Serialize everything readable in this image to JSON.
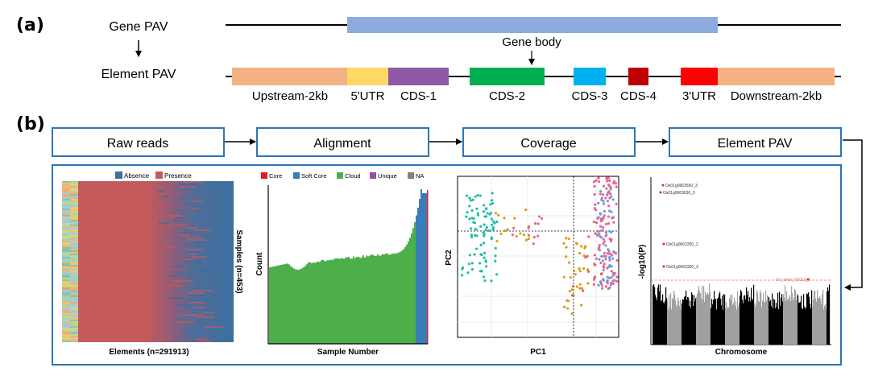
{
  "panel_a": {
    "label": "(a)",
    "gene_pav": "Gene PAV",
    "element_pav": "Element PAV",
    "gene_body": "Gene body",
    "segments": [
      {
        "label": "Upstream-2kb",
        "color": "#f4b183"
      },
      {
        "label": "5'UTR",
        "color": "#ffd966"
      },
      {
        "label": "CDS-1",
        "color": "#8e5aa8"
      },
      {
        "label": "CDS-2",
        "color": "#00b050"
      },
      {
        "label": "CDS-3",
        "color": "#00b0f0"
      },
      {
        "label": "CDS-4",
        "color": "#c00000"
      },
      {
        "label": "3'UTR",
        "color": "#ff0000"
      },
      {
        "label": "Downstream-2kb",
        "color": "#f4b183"
      }
    ],
    "gene_bar_color": "#8faadc"
  },
  "panel_b": {
    "label": "(b)",
    "steps": [
      "Raw reads",
      "Alignment",
      "Coverage",
      "Element PAV"
    ],
    "box_color": "#2e75b6",
    "heatmap": {
      "legend": [
        {
          "label": "Absence",
          "color": "#3b6fa0"
        },
        {
          "label": "Presence",
          "color": "#c45a5a"
        }
      ],
      "xlabel": "Elements (n=291913)",
      "ylabel": "Samples (n=453)"
    },
    "histogram": {
      "legend": [
        {
          "label": "Core",
          "color": "#e41a1c"
        },
        {
          "label": "Soft Core",
          "color": "#377eb8"
        },
        {
          "label": "Cloud",
          "color": "#4daf4a"
        },
        {
          "label": "Unique",
          "color": "#984ea3"
        },
        {
          "label": "NA",
          "color": "#808080"
        }
      ],
      "xlabel": "Sample Number",
      "ylabel": "Count"
    },
    "pca": {
      "xlabel": "PC1",
      "ylabel": "PC2",
      "colors": [
        "#1fbfa5",
        "#d4a017",
        "#f06292",
        "#64a0d8",
        "#e06060"
      ]
    },
    "manhattan": {
      "xlabel": "Chromosome",
      "ylabel": "-log10(P)",
      "threshold_color": "#e07070",
      "annotations": [
        "Os01g0663550_3",
        "Os01g0663630_3",
        "Os01g0663350_2",
        "Os01g0663300_3",
        "Os_other_00012_3"
      ]
    }
  }
}
